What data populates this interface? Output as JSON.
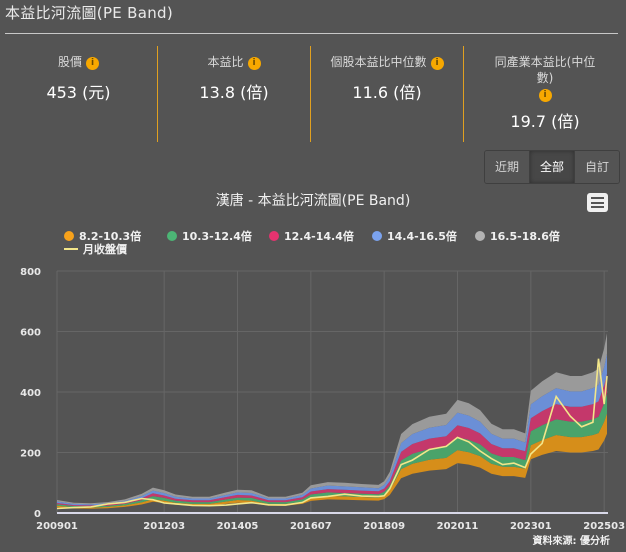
{
  "page": {
    "title": "本益比河流圖(PE Band)"
  },
  "stats": [
    {
      "label": "股價",
      "value": "453 (元)",
      "info_icon": "info-icon"
    },
    {
      "label": "本益比",
      "value": "13.8 (倍)",
      "info_icon": "info-icon"
    },
    {
      "label": "個股本益比中位數",
      "value": "11.6 (倍)",
      "info_icon": "info-icon"
    },
    {
      "label_line1": "同產業本益比(中位",
      "label_line2": "數)",
      "value": "19.7 (倍)",
      "info_icon": "info-icon"
    }
  ],
  "range_buttons": [
    {
      "label": "近期",
      "active": false
    },
    {
      "label": "全部",
      "active": true
    },
    {
      "label": "自訂",
      "active": false
    }
  ],
  "menu_icon": "hamburger-menu-icon",
  "colors": {
    "background": "#545454",
    "accent": "#e0a020",
    "band1": "#d68e1a",
    "band2": "#4aa36a",
    "band3": "#c4386b",
    "band4": "#6b8fd6",
    "band5": "#9a9a9a",
    "price": "#f2e68a"
  },
  "source": "資料來源: 優分析",
  "chart_data": {
    "type": "area",
    "title": "漢唐 - 本益比河流圖(PE Band)",
    "xlabel": "",
    "ylabel": "",
    "ylim": [
      0,
      800
    ],
    "yticks": [
      0,
      200,
      400,
      600,
      800
    ],
    "xticks": [
      "200901",
      "201203",
      "201405",
      "201607",
      "201809",
      "202011",
      "202301",
      "202503"
    ],
    "grid": true,
    "legend_position": "top-left",
    "legend": [
      "8.2-10.3倍",
      "10.3-12.4倍",
      "12.4-14.4倍",
      "14.4-16.5倍",
      "16.5-18.6倍",
      "月收盤價"
    ],
    "pe_multiples": [
      8.2,
      10.3,
      12.4,
      14.4,
      16.5,
      18.6
    ],
    "x": [
      "200901",
      "200907",
      "201001",
      "201007",
      "201101",
      "201107",
      "201111",
      "201203",
      "201207",
      "201301",
      "201307",
      "201401",
      "201405",
      "201410",
      "201504",
      "201510",
      "201604",
      "201607",
      "201701",
      "201707",
      "201801",
      "201807",
      "201809",
      "201811",
      "201903",
      "201907",
      "202001",
      "202007",
      "202011",
      "202103",
      "202107",
      "202111",
      "202203",
      "202207",
      "202211",
      "202301",
      "202305",
      "202310",
      "202403",
      "202407",
      "202411",
      "202501",
      "202503",
      "202504"
    ],
    "series": [
      {
        "name": "8.2-10.3倍 (lower edge)",
        "values": [
          19,
          15,
          14,
          16,
          20,
          28,
          37,
          33,
          27,
          24,
          24,
          30,
          34,
          33,
          24,
          24,
          30,
          40,
          45,
          44,
          42,
          41,
          46,
          60,
          115,
          130,
          140,
          145,
          165,
          160,
          150,
          130,
          122,
          122,
          116,
          178,
          192,
          205,
          200,
          200,
          205,
          210,
          240,
          262
        ]
      },
      {
        "name": "10.3-12.4倍 (lower edge)",
        "values": [
          24,
          19,
          18,
          20,
          25,
          35,
          46,
          41,
          34,
          30,
          30,
          38,
          43,
          41,
          30,
          30,
          37,
          51,
          57,
          55,
          53,
          51,
          58,
          75,
          145,
          163,
          176,
          182,
          208,
          201,
          188,
          163,
          153,
          153,
          146,
          224,
          241,
          258,
          251,
          251,
          258,
          264,
          302,
          329
        ]
      },
      {
        "name": "12.4-14.4倍 (lower edge)",
        "values": [
          29,
          23,
          22,
          24,
          30,
          42,
          56,
          50,
          41,
          36,
          36,
          45,
          51,
          50,
          36,
          36,
          45,
          61,
          68,
          66,
          64,
          62,
          70,
          91,
          174,
          196,
          212,
          219,
          250,
          242,
          227,
          197,
          185,
          185,
          175,
          270,
          290,
          310,
          302,
          302,
          310,
          318,
          363,
          396
        ]
      },
      {
        "name": "14.4-16.5倍 (lower edge)",
        "values": [
          33,
          26,
          25,
          28,
          35,
          49,
          65,
          58,
          47,
          42,
          42,
          53,
          60,
          58,
          42,
          42,
          52,
          71,
          79,
          77,
          74,
          72,
          81,
          105,
          202,
          228,
          246,
          254,
          290,
          281,
          263,
          228,
          214,
          214,
          204,
          313,
          337,
          360,
          351,
          351,
          360,
          369,
          422,
          460
        ]
      },
      {
        "name": "16.5-18.6倍 (lower edge)",
        "values": [
          38,
          30,
          29,
          32,
          40,
          56,
          74,
          66,
          54,
          48,
          48,
          60,
          68,
          66,
          48,
          48,
          60,
          81,
          91,
          88,
          85,
          82,
          93,
          121,
          231,
          261,
          282,
          291,
          332,
          322,
          302,
          262,
          246,
          246,
          233,
          359,
          386,
          413,
          402,
          402,
          413,
          423,
          483,
          527
        ]
      },
      {
        "name": "18.6倍 (upper edge)",
        "values": [
          43,
          34,
          32,
          36,
          45,
          63,
          84,
          75,
          61,
          54,
          54,
          68,
          77,
          75,
          54,
          54,
          67,
          92,
          102,
          100,
          96,
          93,
          105,
          136,
          261,
          294,
          318,
          328,
          374,
          363,
          340,
          295,
          277,
          277,
          263,
          404,
          435,
          465,
          453,
          453,
          465,
          477,
          545,
          594
        ]
      },
      {
        "name": "月收盤價",
        "values": [
          15,
          18,
          20,
          30,
          35,
          48,
          44,
          33,
          30,
          25,
          24,
          26,
          30,
          34,
          27,
          26,
          35,
          50,
          55,
          62,
          56,
          55,
          57,
          80,
          160,
          175,
          210,
          220,
          250,
          235,
          205,
          180,
          160,
          165,
          150,
          195,
          230,
          385,
          320,
          285,
          300,
          510,
          360,
          453
        ]
      }
    ]
  }
}
